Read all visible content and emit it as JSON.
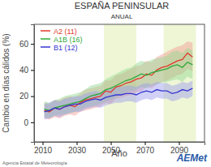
{
  "chart_data": {
    "type": "line",
    "title": "ESPAÑA PENINSULAR",
    "subtitle": "ANUAL",
    "x_label": "Año",
    "y_label": "Cambio en días cálidos (%)",
    "source": "Agencia Estatal de Meteorología",
    "logo": "AEMet",
    "legend": "top-left",
    "grid": false,
    "xlim": [
      2005,
      2105
    ],
    "xticks": [
      2010,
      2030,
      2050,
      2070,
      2090
    ],
    "ylim": [
      -15,
      75
    ],
    "yticks": [
      0,
      20,
      40,
      60
    ],
    "periods": [
      [
        2046,
        2065
      ],
      [
        2081,
        2100
      ]
    ],
    "x": [
      2011,
      2014,
      2017,
      2020,
      2023,
      2026,
      2029,
      2032,
      2035,
      2038,
      2041,
      2044,
      2047,
      2050,
      2053,
      2056,
      2059,
      2062,
      2065,
      2068,
      2071,
      2074,
      2077,
      2080,
      2083,
      2086,
      2089,
      2092,
      2095,
      2098
    ],
    "series": [
      {
        "name": "A2 (11)",
        "color": "#e0392b",
        "values": [
          9,
          8,
          11,
          10,
          12,
          13,
          12,
          15,
          17,
          18,
          19,
          20,
          24,
          23,
          27,
          28,
          30,
          31,
          33,
          34,
          37,
          36,
          40,
          42,
          43,
          45,
          47,
          48,
          53,
          50
        ],
        "lower": [
          3,
          2,
          4,
          3,
          5,
          6,
          5,
          8,
          9,
          10,
          11,
          12,
          15,
          14,
          18,
          19,
          20,
          21,
          23,
          24,
          27,
          26,
          29,
          31,
          32,
          34,
          36,
          37,
          41,
          39
        ],
        "upper": [
          15,
          14,
          17,
          17,
          19,
          20,
          19,
          22,
          25,
          26,
          27,
          28,
          32,
          32,
          36,
          37,
          39,
          41,
          43,
          44,
          47,
          46,
          50,
          52,
          54,
          56,
          58,
          59,
          62,
          61
        ]
      },
      {
        "name": "A1B (16)",
        "color": "#2fa83a",
        "values": [
          10,
          9,
          11,
          12,
          13,
          14,
          15,
          16,
          18,
          20,
          21,
          22,
          25,
          26,
          28,
          30,
          32,
          33,
          35,
          37,
          36,
          38,
          39,
          40,
          41,
          43,
          44,
          42,
          46,
          44
        ],
        "lower": [
          4,
          3,
          5,
          6,
          6,
          7,
          8,
          9,
          11,
          12,
          13,
          14,
          16,
          17,
          19,
          21,
          23,
          24,
          25,
          27,
          26,
          28,
          29,
          30,
          31,
          32,
          33,
          31,
          35,
          33
        ],
        "upper": [
          16,
          15,
          17,
          18,
          20,
          21,
          22,
          23,
          25,
          28,
          29,
          30,
          33,
          35,
          37,
          39,
          41,
          42,
          45,
          47,
          46,
          48,
          49,
          50,
          51,
          54,
          55,
          53,
          57,
          55
        ]
      },
      {
        "name": "B1 (12)",
        "color": "#3636d0",
        "values": [
          8,
          9,
          11,
          10,
          12,
          13,
          14,
          14,
          16,
          17,
          18,
          17,
          19,
          20,
          21,
          21,
          22,
          22,
          21,
          23,
          24,
          23,
          25,
          24,
          24,
          22,
          23,
          25,
          24,
          26
        ],
        "lower": [
          2,
          3,
          5,
          4,
          6,
          7,
          8,
          8,
          10,
          11,
          12,
          11,
          13,
          14,
          15,
          15,
          16,
          16,
          15,
          17,
          18,
          17,
          19,
          18,
          18,
          16,
          17,
          19,
          18,
          20
        ],
        "upper": [
          14,
          15,
          17,
          16,
          18,
          19,
          20,
          20,
          22,
          23,
          24,
          23,
          25,
          26,
          27,
          27,
          28,
          28,
          27,
          29,
          30,
          29,
          31,
          30,
          30,
          28,
          29,
          31,
          30,
          32
        ]
      }
    ]
  }
}
